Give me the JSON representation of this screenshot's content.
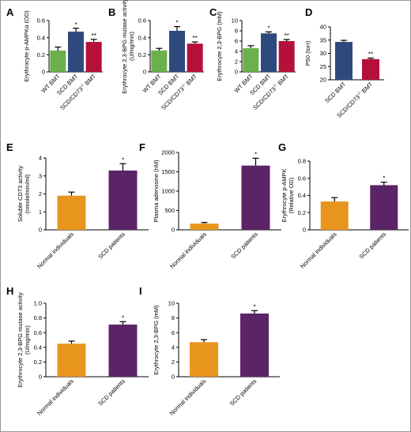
{
  "figure": {
    "colors": {
      "green": "#6ab04c",
      "blue": "#2e4a7d",
      "red": "#b5103a",
      "orange": "#e8951e",
      "purple": "#5b2467"
    }
  },
  "chart_data": [
    {
      "panel": "A",
      "type": "bar",
      "ylabel": "Erythrocyte p-AMPKα (OD)",
      "ylim": [
        0,
        0.6
      ],
      "yticks": [
        "0",
        "0.2",
        "0.4",
        "0.6"
      ],
      "categories": [
        "WT BMT",
        "SCD BMT",
        "SCD/CD73⁻/⁻ BMT"
      ],
      "values": [
        0.25,
        0.47,
        0.35
      ],
      "errors": [
        0.04,
        0.04,
        0.03
      ],
      "sig": [
        "",
        "*",
        "**"
      ],
      "colors": [
        "green",
        "blue",
        "red"
      ]
    },
    {
      "panel": "B",
      "type": "bar",
      "ylabel": "Erythrocyte 2,3-BPG mutase activity (U/mg/min)",
      "ylim": [
        0,
        0.6
      ],
      "yticks": [
        "0",
        "0.2",
        "0.4",
        "0.6"
      ],
      "categories": [
        "WT BMT",
        "SCD BMT",
        "SCD/CD73⁻/⁻ BMT"
      ],
      "values": [
        0.25,
        0.48,
        0.33
      ],
      "errors": [
        0.025,
        0.05,
        0.02
      ],
      "sig": [
        "",
        "*",
        "**"
      ],
      "colors": [
        "green",
        "blue",
        "red"
      ]
    },
    {
      "panel": "C",
      "type": "bar",
      "ylabel": "Erythrocyte 2,3-BPG (mM)",
      "ylim": [
        0,
        10
      ],
      "yticks": [
        "0",
        "2",
        "4",
        "6",
        "8",
        "10"
      ],
      "categories": [
        "WT BMT",
        "SCD BMT",
        "SCD/CD73⁻/⁻ BMT"
      ],
      "values": [
        4.6,
        7.5,
        6.0
      ],
      "errors": [
        0.5,
        0.3,
        0.3
      ],
      "sig": [
        "",
        "*",
        "**"
      ],
      "colors": [
        "green",
        "blue",
        "red"
      ]
    },
    {
      "panel": "D",
      "type": "bar",
      "ylabel": "P50 (torr)",
      "ylim": [
        20,
        40
      ],
      "yticks": [
        "20",
        "25",
        "30",
        "35",
        "40"
      ],
      "categories": [
        "SCD BMT",
        "SCD/CD73⁻/⁻ BMT"
      ],
      "values": [
        34.3,
        27.8
      ],
      "errors": [
        0.6,
        0.4
      ],
      "sig": [
        "",
        "**"
      ],
      "colors": [
        "blue",
        "red"
      ]
    },
    {
      "panel": "E",
      "type": "bar",
      "ylabel": "Soluble CD73 activity (nmole/min/ml)",
      "ylim": [
        0,
        4
      ],
      "yticks": [
        "0",
        "1",
        "2",
        "3",
        "4"
      ],
      "categories": [
        "Normal individuals",
        "SCD patients"
      ],
      "values": [
        1.9,
        3.3
      ],
      "errors": [
        0.2,
        0.38
      ],
      "sig": [
        "",
        "*"
      ],
      "colors": [
        "orange",
        "purple"
      ]
    },
    {
      "panel": "F",
      "type": "bar",
      "ylabel": "Plasma adenosine (nM)",
      "ylim": [
        0,
        2000
      ],
      "yticks": [
        "0",
        "500",
        "1000",
        "1500",
        "2000"
      ],
      "categories": [
        "Normal individuals",
        "SCD patients"
      ],
      "values": [
        160,
        1660
      ],
      "errors": [
        30,
        190
      ],
      "sig": [
        "",
        "*"
      ],
      "colors": [
        "orange",
        "purple"
      ]
    },
    {
      "panel": "G",
      "type": "bar",
      "ylabel": "Erythrocyte p-AMPK (Relative OD)",
      "ylim": [
        0,
        0.8
      ],
      "yticks": [
        "0",
        "0.2",
        "0.4",
        "0.6",
        "0.8"
      ],
      "categories": [
        "Normal individuals",
        "SCD patients"
      ],
      "values": [
        0.33,
        0.52
      ],
      "errors": [
        0.045,
        0.035
      ],
      "sig": [
        "",
        "*"
      ],
      "colors": [
        "orange",
        "purple"
      ]
    },
    {
      "panel": "H",
      "type": "bar",
      "ylabel": "Erythrocyte 2,3-BPG mutase activity (U/mg/min)",
      "ylim": [
        0,
        1.0
      ],
      "yticks": [
        "0",
        "0.2",
        "0.4",
        "0.6",
        "0.8",
        "1.0"
      ],
      "categories": [
        "Normal individuals",
        "SCD patients"
      ],
      "values": [
        0.45,
        0.71
      ],
      "errors": [
        0.035,
        0.04
      ],
      "sig": [
        "",
        "*"
      ],
      "colors": [
        "orange",
        "purple"
      ]
    },
    {
      "panel": "I",
      "type": "bar",
      "ylabel": "Erythrocyte 2,3-BPG (mM)",
      "ylim": [
        0,
        10
      ],
      "yticks": [
        "0",
        "2",
        "4",
        "6",
        "8",
        "10"
      ],
      "categories": [
        "Normal individuals",
        "SCD patients"
      ],
      "values": [
        4.7,
        8.6
      ],
      "errors": [
        0.35,
        0.4
      ],
      "sig": [
        "",
        "*"
      ],
      "colors": [
        "orange",
        "purple"
      ]
    }
  ]
}
